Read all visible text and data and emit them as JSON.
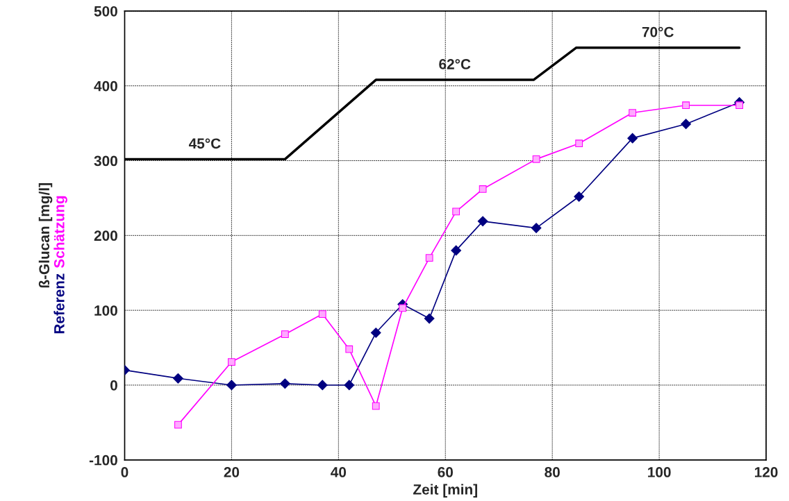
{
  "chart_data": {
    "type": "line",
    "xlabel": "Zeit [min]",
    "ylabel": "ß-Glucan [mg/l]",
    "xlim": [
      0,
      120
    ],
    "xticks": [
      0,
      20,
      40,
      60,
      80,
      100,
      120
    ],
    "ylim": [
      -100,
      500
    ],
    "yticks": [
      -100,
      0,
      100,
      200,
      300,
      400,
      500
    ],
    "grid": true,
    "legend": false,
    "series": [
      {
        "color": "#000000",
        "marker": "none",
        "x": [
          0,
          30,
          47,
          76.5,
          84.5,
          115
        ],
        "values": [
          302,
          302,
          408,
          408,
          451,
          451
        ]
      },
      {
        "name": "Referenz",
        "color": "#000080",
        "marker": "diamond",
        "x": [
          0,
          10,
          20,
          30,
          37,
          42,
          47,
          52,
          57,
          62,
          67,
          77,
          85,
          95,
          105,
          115
        ],
        "values": [
          20,
          9,
          0,
          2,
          0,
          0,
          70,
          108,
          89,
          180,
          219,
          210,
          252,
          330,
          349,
          378
        ]
      },
      {
        "name": "Schätzung",
        "color": "#ff00ff",
        "marker": "square",
        "x": [
          10,
          20,
          30,
          37,
          42,
          47,
          52,
          57,
          62,
          67,
          77,
          85,
          95,
          105,
          115
        ],
        "values": [
          -53,
          31,
          68,
          95,
          48,
          -28,
          103,
          170,
          232,
          262,
          302,
          323,
          364,
          374,
          374
        ]
      }
    ],
    "annotations": [
      "45°C",
      "62°C",
      "70°C"
    ]
  }
}
